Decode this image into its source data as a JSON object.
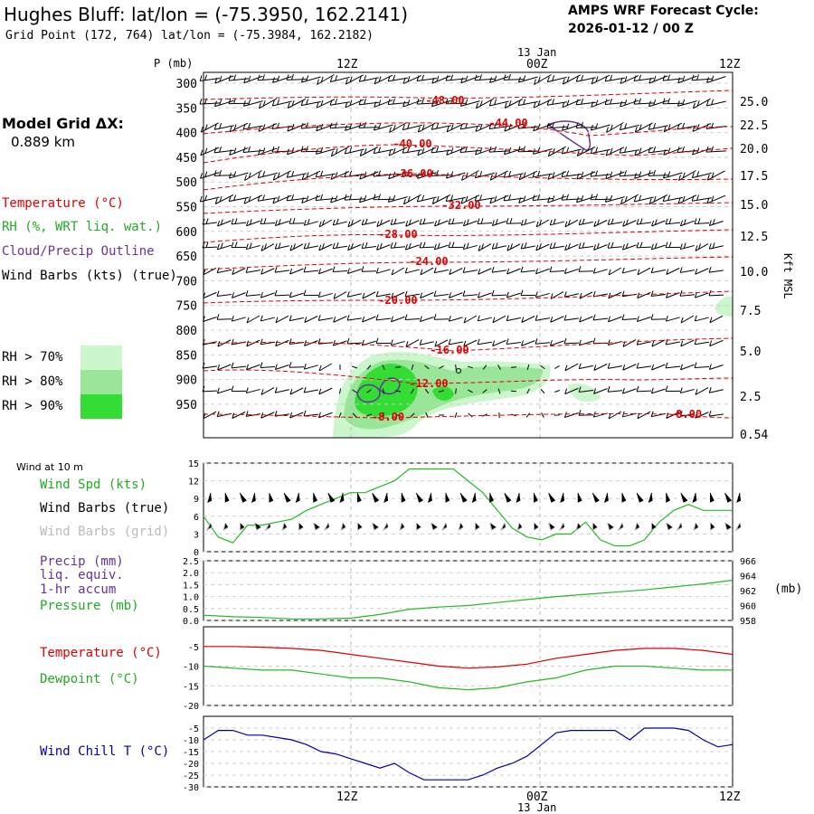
{
  "header": {
    "title": "Hughes Bluff:  lat/lon = (-75.3950, 162.2141)",
    "subtitle": "Grid Point (172, 764) lat/lon = (-75.3984, 162.2182)",
    "cycle_line1": "AMPS WRF Forecast Cycle:",
    "cycle_line2": "2026-01-12 / 00  Z"
  },
  "left_panel": {
    "grid_label": "Model Grid ΔX:",
    "grid_value": "0.889 km",
    "legend_temp": "Temperature (°C)",
    "legend_rh": "RH (%, WRT liq. wat.)",
    "legend_cloud": "Cloud/Precip Outline",
    "legend_wind": "Wind Barbs (kts) (true)",
    "rh70": "RH > 70%",
    "rh80": "RH > 80%",
    "rh90": "RH > 90%"
  },
  "colors": {
    "rh70": "#ccf6cc",
    "rh80": "#99e699",
    "rh90": "#33dd33",
    "temp": "#dd0000",
    "green": "#22bb22",
    "purple": "#663399",
    "blue": "#0000aa"
  },
  "time_axis": {
    "top_date": "13 Jan",
    "bottom_date": "13 Jan",
    "ticks": [
      "12Z",
      "00Z",
      "12Z"
    ]
  },
  "upper": {
    "p_label": "P (mb)",
    "right_label": "Kft MSL",
    "p_ticks": [
      "300",
      "350",
      "400",
      "450",
      "500",
      "550",
      "600",
      "650",
      "700",
      "750",
      "800",
      "850",
      "900",
      "950"
    ],
    "kft_ticks": [
      "25.0",
      "22.5",
      "20.0",
      "17.5",
      "15.0",
      "12.5",
      "10.0",
      "7.5",
      "5.0",
      "2.5",
      "0.54"
    ],
    "temp_labels": [
      "-48.00",
      "-44.00",
      "-40.00",
      "-36.00",
      "-32.00",
      "-28.00",
      "-24.00",
      "-20.00",
      "-16.00",
      "-12.00",
      "-8.00",
      "-8.00"
    ]
  },
  "wind_panel": {
    "title": "Wind at 10 m",
    "l1": "Wind Spd (kts)",
    "l2": "Wind Barbs (true)",
    "l3": "Wind Barbs (grid)",
    "y_ticks": [
      "15",
      "12",
      "9",
      "6",
      "3",
      "0"
    ]
  },
  "pressure_panel": {
    "l1": "Precip (mm)",
    "l2": "liq. equiv.",
    "l3": "1-hr accum",
    "l4": "Pressure (mb)",
    "right_unit": "(mb)",
    "precip_ticks": [
      "2.5",
      "2.0",
      "1.5",
      "1.0",
      "0.5",
      "0.0"
    ],
    "press_ticks": [
      "966",
      "964",
      "962",
      "960",
      "958"
    ]
  },
  "temp_panel": {
    "l1": "Temperature (°C)",
    "l2": "Dewpoint (°C)",
    "y_ticks": [
      "-5",
      "-10",
      "-15",
      "-20"
    ]
  },
  "chill_panel": {
    "l1": "Wind Chill T (°C)",
    "y_ticks": [
      "-5",
      "-10",
      "-15",
      "-20",
      "-25",
      "-30"
    ]
  },
  "chart_data": [
    {
      "type": "line",
      "title": "Wind at 10 m",
      "ylabel": "Wind Spd (kts)",
      "ylim": [
        0,
        15
      ],
      "x": [
        0,
        1,
        2,
        3,
        4,
        5,
        6,
        7,
        8,
        9,
        10,
        11,
        12,
        13,
        14,
        15,
        16,
        17,
        18,
        19,
        20,
        21,
        22,
        23,
        24,
        25,
        26,
        27,
        28,
        29,
        30,
        31,
        32,
        33,
        34,
        35,
        36
      ],
      "series": [
        {
          "name": "Wind Spd (kts)",
          "values": [
            6,
            2.5,
            1.5,
            4.5,
            4.5,
            5,
            5.5,
            7,
            8,
            9,
            10,
            10,
            11,
            12,
            14,
            14,
            14,
            14,
            12,
            10,
            7,
            4,
            2.5,
            2,
            3,
            3,
            5,
            2,
            1,
            1,
            2,
            5,
            7,
            8,
            7,
            7,
            7
          ]
        }
      ]
    },
    {
      "type": "line",
      "title": "Pressure (mb)",
      "ylim": [
        958,
        966
      ],
      "x": [
        0,
        2,
        4,
        6,
        8,
        10,
        12,
        14,
        16,
        18,
        20,
        22,
        24,
        26,
        28,
        30,
        32,
        34,
        36
      ],
      "series": [
        {
          "name": "Pressure (mb)",
          "values": [
            958.7,
            958.5,
            958.4,
            958.2,
            958.2,
            958.3,
            958.8,
            959.5,
            959.8,
            960.0,
            960.4,
            960.8,
            961.2,
            961.5,
            961.8,
            962.1,
            962.5,
            962.9,
            963.4
          ]
        }
      ]
    },
    {
      "type": "line",
      "ylim": [
        -20,
        0
      ],
      "x": [
        0,
        2,
        4,
        6,
        8,
        10,
        12,
        14,
        16,
        18,
        20,
        22,
        24,
        26,
        28,
        30,
        32,
        34,
        36
      ],
      "series": [
        {
          "name": "Temperature (°C)",
          "values": [
            -5,
            -5,
            -5.2,
            -5.5,
            -6,
            -7,
            -8,
            -9,
            -10,
            -10.5,
            -10.2,
            -9.5,
            -8,
            -7,
            -6,
            -5.5,
            -5.5,
            -6,
            -7
          ]
        },
        {
          "name": "Dewpoint (°C)",
          "values": [
            -10,
            -10.5,
            -11,
            -11,
            -12,
            -13,
            -13,
            -14,
            -15.5,
            -16,
            -15.5,
            -14,
            -13,
            -11,
            -10,
            -10,
            -10.5,
            -11,
            -11
          ]
        }
      ]
    },
    {
      "type": "line",
      "ylim": [
        -30,
        0
      ],
      "x": [
        0,
        1,
        2,
        3,
        4,
        5,
        6,
        7,
        8,
        9,
        10,
        11,
        12,
        13,
        14,
        15,
        16,
        17,
        18,
        19,
        20,
        21,
        22,
        23,
        24,
        25,
        26,
        27,
        28,
        29,
        30,
        31,
        32,
        33,
        34,
        35,
        36
      ],
      "series": [
        {
          "name": "Wind Chill T (°C)",
          "values": [
            -10,
            -6,
            -6,
            -8,
            -8,
            -9,
            -10,
            -12,
            -15,
            -16,
            -18,
            -20,
            -22,
            -20,
            -24,
            -27,
            -27,
            -27,
            -27,
            -25,
            -22,
            -20,
            -17,
            -12,
            -7,
            -6,
            -6,
            -6,
            -6,
            -10,
            -5,
            -5,
            -5,
            -6,
            -10,
            -13,
            -12
          ]
        }
      ]
    }
  ]
}
